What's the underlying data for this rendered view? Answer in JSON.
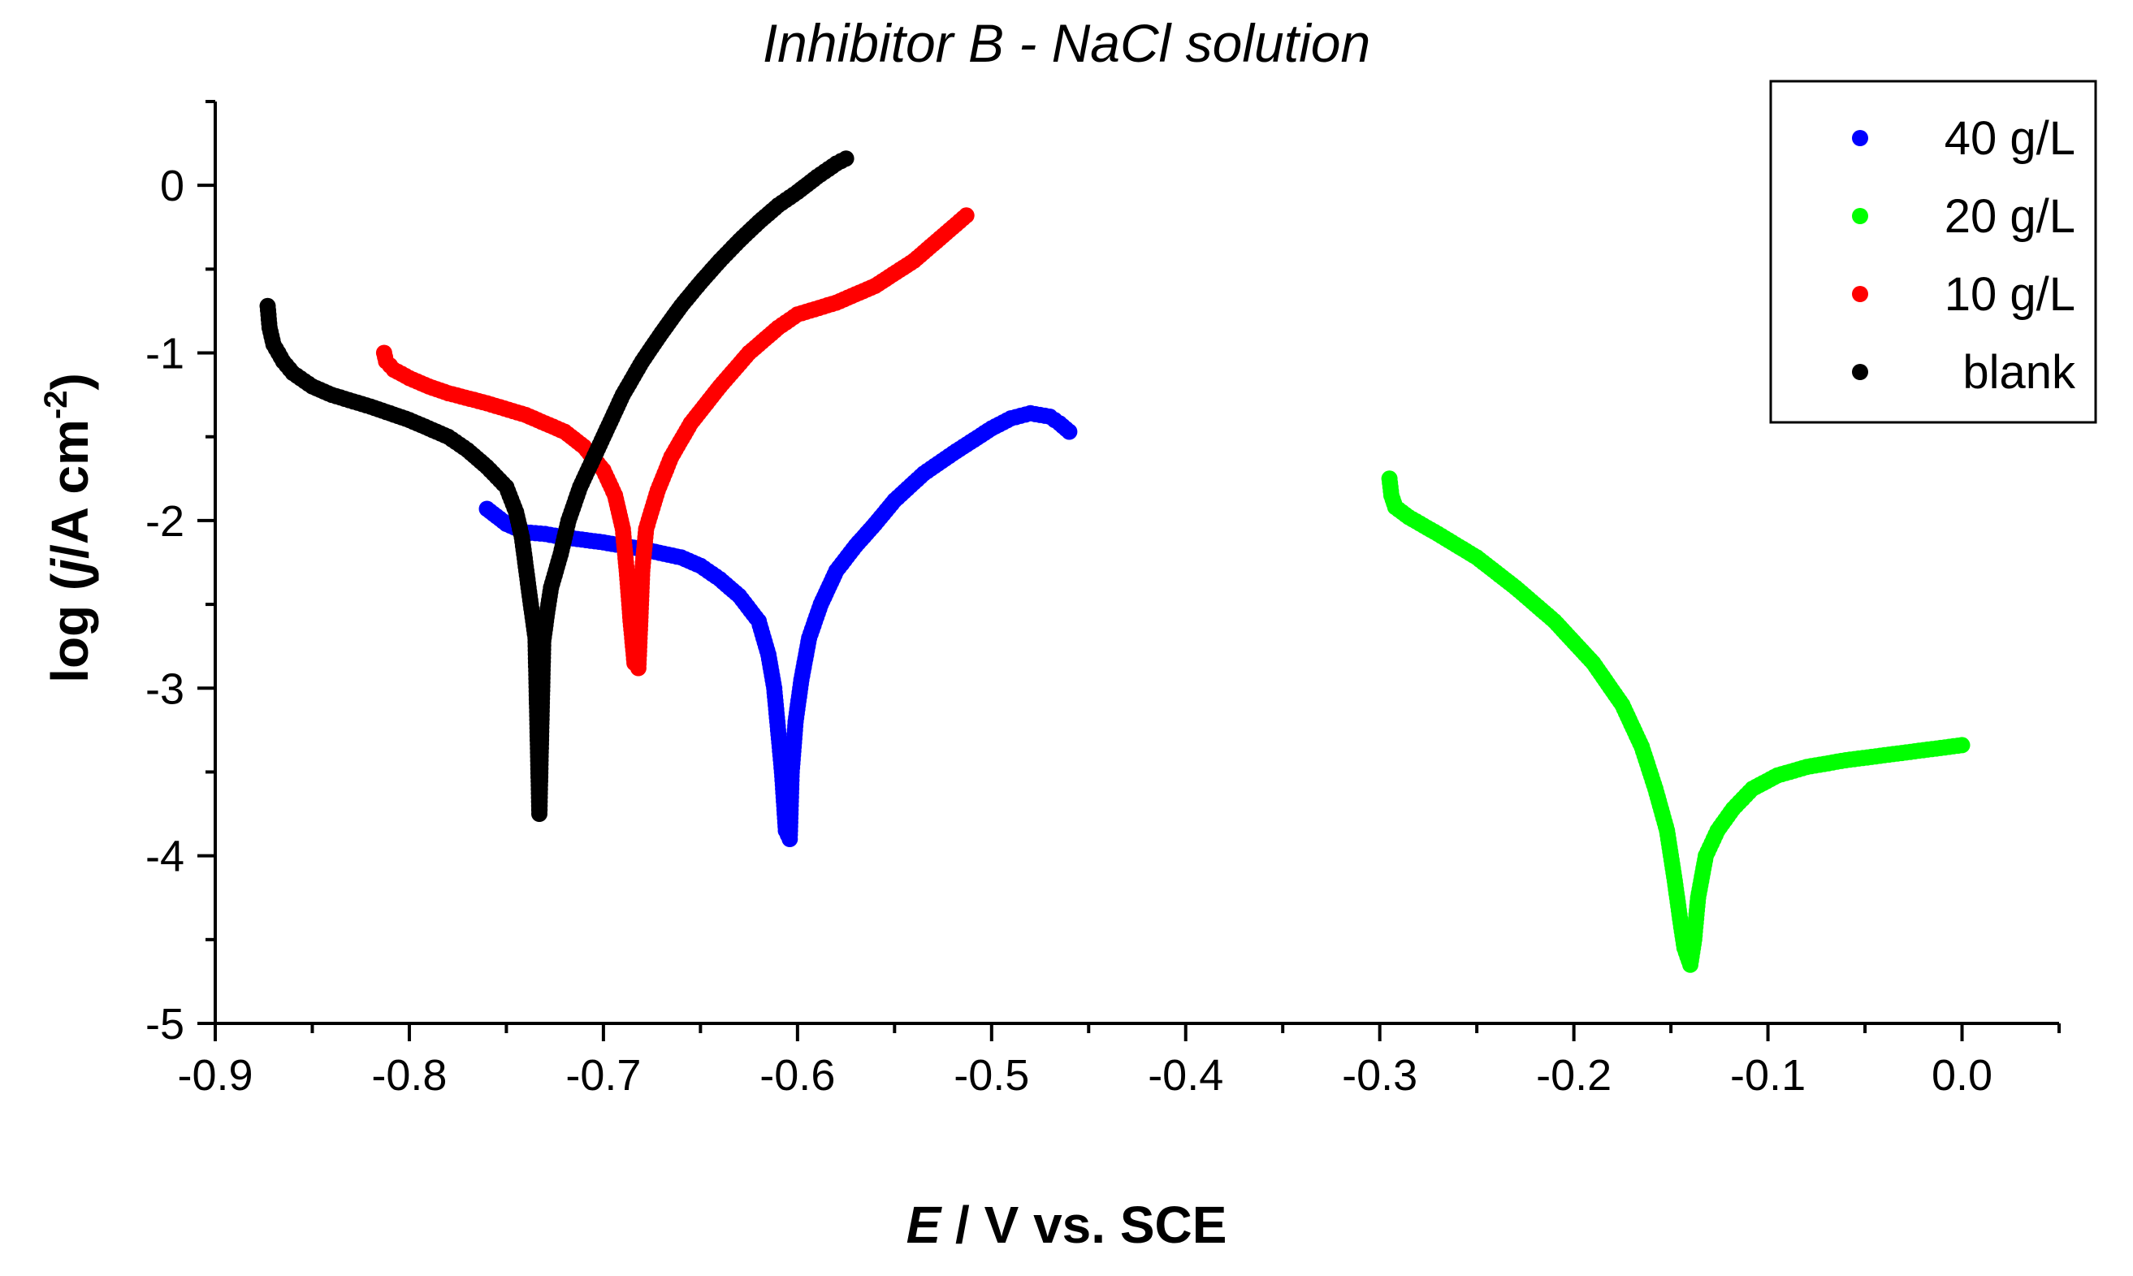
{
  "chart_data": {
    "type": "scatter",
    "title": "Inhibitor B - NaCl solution",
    "xlabel": {
      "italic": "E",
      "rest": " / V vs. SCE"
    },
    "ylabel": {
      "prefix": "log (",
      "italic": "j",
      "mid": "/A cm",
      "sup": "-2",
      "suffix": ")"
    },
    "xlim": [
      -0.9,
      0.05
    ],
    "ylim": [
      -5,
      0.5
    ],
    "xticks": [
      -0.9,
      -0.8,
      -0.7,
      -0.6,
      -0.5,
      -0.4,
      -0.3,
      -0.2,
      -0.1,
      0.0
    ],
    "xtick_labels": [
      "-0.9",
      "-0.8",
      "-0.7",
      "-0.6",
      "-0.5",
      "-0.4",
      "-0.3",
      "-0.2",
      "-0.1",
      "0.0"
    ],
    "yticks": [
      -5,
      -4,
      -3,
      -2,
      -1,
      0
    ],
    "ytick_labels": [
      "-5",
      "-4",
      "-3",
      "-2",
      "-1",
      "0"
    ],
    "legend_position": "top-right",
    "series": [
      {
        "name": "40 g/L",
        "color": "#0000ff",
        "points": [
          [
            -0.76,
            -1.93
          ],
          [
            -0.75,
            -2.02
          ],
          [
            -0.74,
            -2.07
          ],
          [
            -0.73,
            -2.08
          ],
          [
            -0.72,
            -2.1
          ],
          [
            -0.7,
            -2.13
          ],
          [
            -0.68,
            -2.17
          ],
          [
            -0.66,
            -2.22
          ],
          [
            -0.65,
            -2.27
          ],
          [
            -0.64,
            -2.35
          ],
          [
            -0.63,
            -2.45
          ],
          [
            -0.62,
            -2.6
          ],
          [
            -0.615,
            -2.8
          ],
          [
            -0.612,
            -3.0
          ],
          [
            -0.61,
            -3.25
          ],
          [
            -0.608,
            -3.5
          ],
          [
            -0.606,
            -3.85
          ],
          [
            -0.604,
            -3.9
          ],
          [
            -0.603,
            -3.5
          ],
          [
            -0.601,
            -3.2
          ],
          [
            -0.598,
            -2.95
          ],
          [
            -0.594,
            -2.7
          ],
          [
            -0.588,
            -2.5
          ],
          [
            -0.58,
            -2.3
          ],
          [
            -0.57,
            -2.15
          ],
          [
            -0.56,
            -2.02
          ],
          [
            -0.55,
            -1.88
          ],
          [
            -0.535,
            -1.72
          ],
          [
            -0.52,
            -1.6
          ],
          [
            -0.5,
            -1.45
          ],
          [
            -0.49,
            -1.39
          ],
          [
            -0.48,
            -1.36
          ],
          [
            -0.47,
            -1.38
          ],
          [
            -0.465,
            -1.42
          ],
          [
            -0.46,
            -1.47
          ]
        ]
      },
      {
        "name": "20 g/L",
        "color": "#00ff00",
        "points": [
          [
            -0.295,
            -1.75
          ],
          [
            -0.294,
            -1.85
          ],
          [
            -0.292,
            -1.92
          ],
          [
            -0.285,
            -1.98
          ],
          [
            -0.27,
            -2.08
          ],
          [
            -0.25,
            -2.22
          ],
          [
            -0.23,
            -2.4
          ],
          [
            -0.21,
            -2.6
          ],
          [
            -0.19,
            -2.85
          ],
          [
            -0.175,
            -3.1
          ],
          [
            -0.165,
            -3.35
          ],
          [
            -0.158,
            -3.6
          ],
          [
            -0.152,
            -3.85
          ],
          [
            -0.148,
            -4.15
          ],
          [
            -0.145,
            -4.4
          ],
          [
            -0.143,
            -4.55
          ],
          [
            -0.14,
            -4.65
          ],
          [
            -0.138,
            -4.5
          ],
          [
            -0.136,
            -4.25
          ],
          [
            -0.132,
            -4.0
          ],
          [
            -0.126,
            -3.85
          ],
          [
            -0.118,
            -3.72
          ],
          [
            -0.108,
            -3.6
          ],
          [
            -0.095,
            -3.52
          ],
          [
            -0.08,
            -3.47
          ],
          [
            -0.06,
            -3.43
          ],
          [
            -0.04,
            -3.4
          ],
          [
            -0.02,
            -3.37
          ],
          [
            0.0,
            -3.34
          ]
        ]
      },
      {
        "name": "10 g/L",
        "color": "#ff0000",
        "points": [
          [
            -0.813,
            -1.0
          ],
          [
            -0.812,
            -1.05
          ],
          [
            -0.808,
            -1.1
          ],
          [
            -0.8,
            -1.15
          ],
          [
            -0.79,
            -1.2
          ],
          [
            -0.78,
            -1.24
          ],
          [
            -0.76,
            -1.3
          ],
          [
            -0.74,
            -1.37
          ],
          [
            -0.72,
            -1.47
          ],
          [
            -0.71,
            -1.56
          ],
          [
            -0.7,
            -1.7
          ],
          [
            -0.694,
            -1.85
          ],
          [
            -0.69,
            -2.05
          ],
          [
            -0.688,
            -2.3
          ],
          [
            -0.686,
            -2.6
          ],
          [
            -0.684,
            -2.85
          ],
          [
            -0.682,
            -2.88
          ],
          [
            -0.681,
            -2.6
          ],
          [
            -0.68,
            -2.3
          ],
          [
            -0.678,
            -2.05
          ],
          [
            -0.672,
            -1.82
          ],
          [
            -0.665,
            -1.62
          ],
          [
            -0.655,
            -1.42
          ],
          [
            -0.64,
            -1.2
          ],
          [
            -0.625,
            -1.0
          ],
          [
            -0.61,
            -0.85
          ],
          [
            -0.6,
            -0.77
          ],
          [
            -0.58,
            -0.7
          ],
          [
            -0.56,
            -0.6
          ],
          [
            -0.54,
            -0.45
          ],
          [
            -0.52,
            -0.25
          ],
          [
            -0.513,
            -0.18
          ]
        ]
      },
      {
        "name": "blank",
        "color": "#000000",
        "points": [
          [
            -0.873,
            -0.72
          ],
          [
            -0.872,
            -0.85
          ],
          [
            -0.87,
            -0.95
          ],
          [
            -0.865,
            -1.05
          ],
          [
            -0.86,
            -1.12
          ],
          [
            -0.85,
            -1.2
          ],
          [
            -0.84,
            -1.25
          ],
          [
            -0.82,
            -1.32
          ],
          [
            -0.8,
            -1.4
          ],
          [
            -0.78,
            -1.5
          ],
          [
            -0.77,
            -1.58
          ],
          [
            -0.76,
            -1.68
          ],
          [
            -0.75,
            -1.8
          ],
          [
            -0.745,
            -1.95
          ],
          [
            -0.742,
            -2.1
          ],
          [
            -0.738,
            -2.45
          ],
          [
            -0.735,
            -2.7
          ],
          [
            -0.733,
            -3.75
          ],
          [
            -0.731,
            -2.72
          ],
          [
            -0.729,
            -2.55
          ],
          [
            -0.727,
            -2.4
          ],
          [
            -0.722,
            -2.2
          ],
          [
            -0.718,
            -2.0
          ],
          [
            -0.712,
            -1.8
          ],
          [
            -0.7,
            -1.5
          ],
          [
            -0.69,
            -1.25
          ],
          [
            -0.68,
            -1.05
          ],
          [
            -0.67,
            -0.88
          ],
          [
            -0.66,
            -0.72
          ],
          [
            -0.65,
            -0.58
          ],
          [
            -0.64,
            -0.45
          ],
          [
            -0.63,
            -0.33
          ],
          [
            -0.62,
            -0.22
          ],
          [
            -0.61,
            -0.12
          ],
          [
            -0.6,
            -0.04
          ],
          [
            -0.59,
            0.05
          ],
          [
            -0.58,
            0.13
          ],
          [
            -0.575,
            0.16
          ]
        ]
      }
    ],
    "legend_order": [
      "40 g/L",
      "20 g/L",
      "10 g/L",
      "blank"
    ]
  }
}
